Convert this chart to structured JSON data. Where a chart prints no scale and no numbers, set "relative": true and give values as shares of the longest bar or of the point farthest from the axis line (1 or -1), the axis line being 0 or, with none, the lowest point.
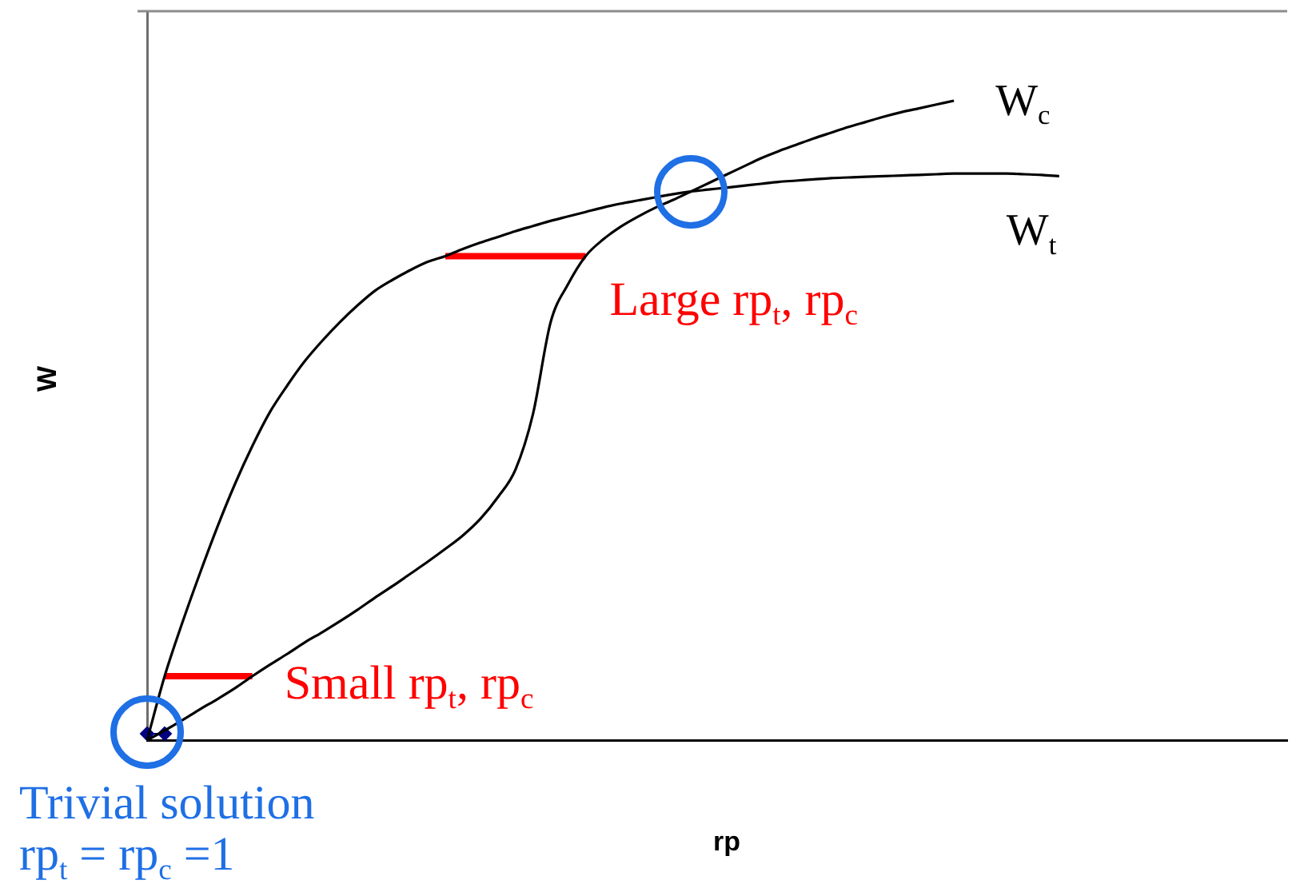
{
  "chart_data": {
    "type": "line",
    "xlabel": "rp",
    "ylabel": "W",
    "relative": true,
    "categories": [
      null,
      null,
      null,
      null,
      null,
      null,
      null,
      null,
      null,
      null,
      null,
      null,
      null,
      null,
      null,
      null,
      null,
      null,
      null,
      null,
      null,
      null,
      null,
      null,
      null,
      null,
      null,
      null,
      null,
      null,
      null,
      null,
      null,
      null,
      null,
      null,
      null,
      null,
      null,
      null,
      null,
      null,
      null,
      null,
      null,
      null,
      null,
      null,
      null,
      null,
      null,
      null,
      null,
      null,
      null,
      null,
      null,
      null,
      null,
      null,
      null,
      null,
      null,
      null,
      null,
      null
    ],
    "series": [
      {
        "name": "W$_{c}$",
        "color": "#000000",
        "values": [
          0,
          0.015,
          0.031,
          0.048,
          0.064,
          0.081,
          0.1,
          0.118,
          0.135,
          0.153,
          0.169,
          0.186,
          0.204,
          0.223,
          0.241,
          0.26,
          0.279,
          0.299,
          0.32,
          0.346,
          0.38,
          0.423,
          0.51,
          0.653,
          0.713,
          0.757,
          0.783,
          0.803,
          0.819,
          0.833,
          0.845,
          0.858,
          0.871,
          0.884,
          0.897,
          0.91,
          0.921,
          0.931,
          0.941,
          0.95,
          0.959,
          0.967,
          0.975,
          0.982,
          0.988,
          0.994,
          1,
          null,
          null,
          null,
          null,
          null,
          null,
          null,
          null,
          null,
          null,
          null,
          null,
          null,
          null,
          null,
          null,
          null,
          null,
          null
        ]
      },
      {
        "name": "W$_{t}$",
        "color": "#000000",
        "values": [
          0,
          0.1,
          0.183,
          0.26,
          0.333,
          0.4,
          0.46,
          0.513,
          0.555,
          0.593,
          0.625,
          0.654,
          0.68,
          0.703,
          0.72,
          0.735,
          0.748,
          0.757,
          0.768,
          0.778,
          0.787,
          0.796,
          0.804,
          0.812,
          0.819,
          0.826,
          0.833,
          0.839,
          0.844,
          0.849,
          0.854,
          0.858,
          0.861,
          0.864,
          0.867,
          0.87,
          0.873,
          0.875,
          0.877,
          0.879,
          0.88,
          0.881,
          0.882,
          0.883,
          0.884,
          0.885,
          0.886,
          0.886,
          0.886,
          0.886,
          0.885,
          0.884,
          0.882,
          null,
          null,
          null,
          null,
          null,
          null,
          null,
          null,
          null,
          null,
          null,
          null,
          null
        ]
      },
      {
        "name": "Small rp$_{t}$, rp$_{c}$",
        "color": "#ff0000",
        "values": [
          null,
          0.1,
          0.1,
          0.1,
          0.1,
          0.1,
          0.1,
          null,
          null,
          null,
          null,
          null,
          null,
          null,
          null,
          null,
          null,
          null,
          null,
          null,
          null,
          null,
          null,
          null,
          null,
          null,
          null,
          null,
          null,
          null,
          null,
          null,
          null,
          null,
          null,
          null,
          null,
          null,
          null,
          null,
          null,
          null,
          null,
          null,
          null,
          null,
          null,
          null,
          null,
          null,
          null,
          null,
          null,
          null,
          null,
          null,
          null,
          null,
          null,
          null,
          null,
          null,
          null,
          null,
          null,
          null
        ]
      },
      {
        "name": "Large rp$_{t}$, rp$_{c}$",
        "color": "#ff0000",
        "values": [
          null,
          null,
          null,
          null,
          null,
          null,
          null,
          null,
          null,
          null,
          null,
          null,
          null,
          null,
          null,
          null,
          null,
          0.757,
          0.757,
          0.757,
          0.757,
          0.757,
          0.757,
          0.757,
          0.757,
          0.757,
          null,
          null,
          null,
          null,
          null,
          null,
          null,
          null,
          null,
          null,
          null,
          null,
          null,
          null,
          null,
          null,
          null,
          null,
          null,
          null,
          null,
          null,
          null,
          null,
          null,
          null,
          null,
          null,
          null,
          null,
          null,
          null,
          null,
          null,
          null,
          null,
          null,
          null,
          null,
          null
        ]
      },
      {
        "marker": "diamond",
        "color": "#000080",
        "values": [
          0.01,
          0.01,
          null,
          null,
          null,
          null,
          null,
          null,
          null,
          null,
          null,
          null,
          null,
          null,
          null,
          null,
          null,
          null,
          null,
          null,
          null,
          null,
          null,
          null,
          null,
          null,
          null,
          null,
          null,
          null,
          null,
          null,
          null,
          null,
          null,
          null,
          null,
          null,
          null,
          null,
          null,
          null,
          null,
          null,
          null,
          null,
          null,
          null,
          null,
          null,
          null,
          null,
          null,
          null,
          null,
          null,
          null,
          null,
          null,
          null,
          null,
          null,
          null,
          null,
          null,
          null
        ]
      }
    ],
    "annotations": [
      "Trivial solution\nrp$_{t}$ = rp$_{c}$ =1"
    ]
  }
}
